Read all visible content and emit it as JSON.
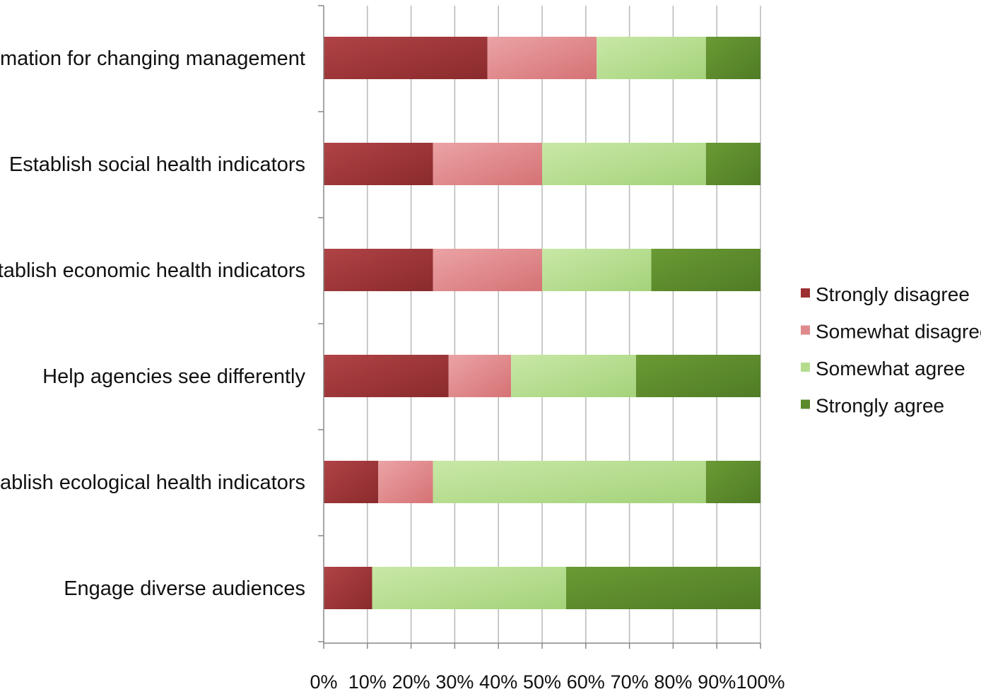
{
  "chart_data": {
    "type": "bar",
    "orientation": "horizontal",
    "stacked": true,
    "normalized": true,
    "categories": [
      "Information for changing management",
      "Establish social health indicators",
      "Establish economic health indicators",
      "Help agencies see differently",
      "Establish ecological health indicators",
      "Engage diverse audiences"
    ],
    "series": [
      {
        "name": "Strongly disagree",
        "values": [
          37.5,
          25,
          25,
          28.6,
          12.5,
          11.1
        ]
      },
      {
        "name": "Somewhat disagree",
        "values": [
          25,
          25,
          25,
          14.3,
          12.5,
          0
        ]
      },
      {
        "name": "Somewhat agree",
        "values": [
          25,
          37.5,
          25,
          28.6,
          62.5,
          44.4
        ]
      },
      {
        "name": "Strongly agree",
        "values": [
          12.5,
          12.5,
          25,
          28.5,
          12.5,
          44.5
        ]
      }
    ],
    "xlim": [
      0,
      100
    ],
    "xticks": [
      "0%",
      "10%",
      "20%",
      "30%",
      "40%",
      "50%",
      "60%",
      "70%",
      "80%",
      "90%",
      "100%"
    ],
    "grid": true,
    "legend_position": "right",
    "title": "",
    "xlabel": "",
    "ylabel": ""
  },
  "colors": {
    "strongly_disagree": "#9b2f32",
    "somewhat_disagree": "#df8a8c",
    "somewhat_agree": "#b4dc8c",
    "strongly_agree": "#5b8a2c",
    "grid": "#b8b8b8",
    "axis": "#888888"
  }
}
